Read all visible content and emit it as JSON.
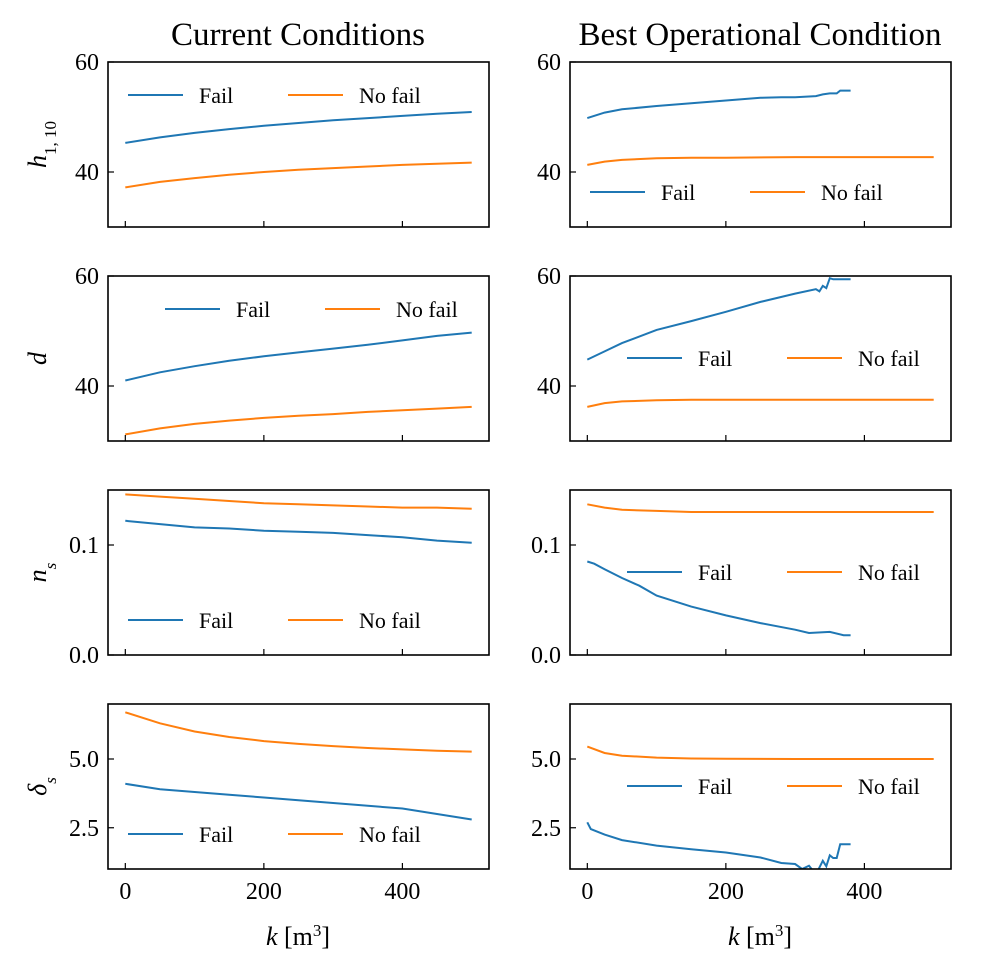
{
  "chart_data": {
    "type": "line",
    "column_titles": [
      "Current Conditions",
      "Best Operational Condition"
    ],
    "xlabel": {
      "var": "k",
      "unit": "[m",
      "sup": "3",
      "close": "]"
    },
    "xlim": [
      -25,
      525
    ],
    "xticks": [
      0,
      200,
      400
    ],
    "legend": {
      "fail": "Fail",
      "nofail": "No fail"
    },
    "colors": {
      "fail": "#1f77b4",
      "nofail": "#ff7f0e"
    },
    "rows": [
      {
        "ylabel": {
          "base": "h",
          "sub": "1, 10"
        },
        "ylim": [
          30,
          60
        ],
        "yticks": [
          40,
          60
        ],
        "ytick_labels": [
          "40",
          "60"
        ],
        "panels": [
          {
            "legend_position": "upper-left",
            "fail": {
              "x": [
                0,
                50,
                100,
                150,
                200,
                250,
                300,
                350,
                400,
                450,
                500
              ],
              "y": [
                45.3,
                46.3,
                47.1,
                47.8,
                48.4,
                48.9,
                49.4,
                49.8,
                50.2,
                50.6,
                50.9
              ]
            },
            "nofail": {
              "x": [
                0,
                50,
                100,
                150,
                200,
                250,
                300,
                350,
                400,
                450,
                500
              ],
              "y": [
                37.2,
                38.2,
                38.9,
                39.5,
                40.0,
                40.4,
                40.7,
                41.0,
                41.3,
                41.5,
                41.7
              ]
            }
          },
          {
            "legend_position": "lower-left",
            "fail": {
              "x": [
                0,
                25,
                50,
                100,
                150,
                200,
                250,
                280,
                300,
                330,
                340,
                350,
                360,
                365,
                380
              ],
              "y": [
                49.8,
                50.8,
                51.4,
                52.0,
                52.5,
                53.0,
                53.5,
                53.6,
                53.6,
                53.8,
                54.1,
                54.3,
                54.3,
                54.8,
                54.8
              ]
            },
            "nofail": {
              "x": [
                0,
                25,
                50,
                100,
                150,
                200,
                300,
                400,
                500
              ],
              "y": [
                41.3,
                41.9,
                42.2,
                42.5,
                42.6,
                42.6,
                42.7,
                42.7,
                42.7
              ]
            }
          }
        ]
      },
      {
        "ylabel": {
          "base": "d",
          "sub": ""
        },
        "ylim": [
          30,
          60
        ],
        "yticks": [
          40,
          60
        ],
        "ytick_labels": [
          "40",
          "60"
        ],
        "panels": [
          {
            "legend_position": "upper-right",
            "fail": {
              "x": [
                0,
                50,
                100,
                150,
                200,
                250,
                300,
                350,
                400,
                450,
                500
              ],
              "y": [
                41.0,
                42.5,
                43.6,
                44.6,
                45.4,
                46.1,
                46.8,
                47.5,
                48.3,
                49.1,
                49.7
              ]
            },
            "nofail": {
              "x": [
                0,
                50,
                100,
                150,
                200,
                250,
                300,
                350,
                400,
                450,
                500
              ],
              "y": [
                31.2,
                32.3,
                33.1,
                33.7,
                34.2,
                34.6,
                34.9,
                35.3,
                35.6,
                35.9,
                36.2
              ]
            }
          },
          {
            "legend_position": "center-right",
            "fail": {
              "x": [
                0,
                25,
                50,
                100,
                150,
                200,
                250,
                300,
                330,
                335,
                340,
                345,
                350,
                355,
                380
              ],
              "y": [
                44.8,
                46.3,
                47.8,
                50.2,
                51.8,
                53.5,
                55.3,
                56.8,
                57.6,
                57.2,
                58.2,
                57.8,
                59.6,
                59.4,
                59.4
              ]
            },
            "nofail": {
              "x": [
                0,
                25,
                50,
                100,
                150,
                200,
                300,
                400,
                500
              ],
              "y": [
                36.2,
                36.9,
                37.2,
                37.4,
                37.5,
                37.5,
                37.5,
                37.5,
                37.5
              ]
            }
          }
        ]
      },
      {
        "ylabel": {
          "base": "n",
          "sub": "s"
        },
        "ylim": [
          0.0,
          0.15
        ],
        "yticks": [
          0.0,
          0.1
        ],
        "ytick_labels": [
          "0.0",
          "0.1"
        ],
        "panels": [
          {
            "legend_position": "lower-left",
            "fail": {
              "x": [
                0,
                50,
                100,
                150,
                200,
                250,
                300,
                350,
                400,
                450,
                500
              ],
              "y": [
                0.122,
                0.119,
                0.116,
                0.115,
                0.113,
                0.112,
                0.111,
                0.109,
                0.107,
                0.104,
                0.102
              ]
            },
            "nofail": {
              "x": [
                0,
                50,
                100,
                150,
                200,
                250,
                300,
                350,
                400,
                450,
                500
              ],
              "y": [
                0.146,
                0.144,
                0.142,
                0.14,
                0.138,
                0.137,
                0.136,
                0.135,
                0.134,
                0.134,
                0.133
              ]
            }
          },
          {
            "legend_position": "center-right",
            "fail": {
              "x": [
                0,
                10,
                25,
                50,
                75,
                100,
                150,
                200,
                250,
                300,
                320,
                350,
                370,
                380
              ],
              "y": [
                0.085,
                0.083,
                0.078,
                0.07,
                0.063,
                0.054,
                0.044,
                0.036,
                0.029,
                0.023,
                0.02,
                0.021,
                0.018,
                0.018
              ]
            },
            "nofail": {
              "x": [
                0,
                25,
                50,
                100,
                150,
                200,
                300,
                400,
                500
              ],
              "y": [
                0.137,
                0.134,
                0.132,
                0.131,
                0.13,
                0.13,
                0.13,
                0.13,
                0.13
              ]
            }
          }
        ]
      },
      {
        "ylabel": {
          "base": "δ",
          "sub": "s"
        },
        "ylim": [
          1.0,
          7.0
        ],
        "yticks": [
          2.5,
          5.0
        ],
        "ytick_labels": [
          "2.5",
          "5.0"
        ],
        "panels": [
          {
            "legend_position": "lower-left",
            "fail": {
              "x": [
                0,
                50,
                100,
                150,
                200,
                250,
                300,
                350,
                400,
                450,
                500
              ],
              "y": [
                4.1,
                3.9,
                3.8,
                3.7,
                3.6,
                3.5,
                3.4,
                3.3,
                3.2,
                3.0,
                2.8
              ]
            },
            "nofail": {
              "x": [
                0,
                50,
                100,
                150,
                200,
                250,
                300,
                350,
                400,
                450,
                500
              ],
              "y": [
                6.7,
                6.3,
                6.0,
                5.8,
                5.65,
                5.55,
                5.47,
                5.4,
                5.35,
                5.3,
                5.27
              ]
            }
          },
          {
            "legend_position": "center-right",
            "fail": {
              "x": [
                0,
                5,
                25,
                50,
                100,
                150,
                200,
                250,
                280,
                300,
                310,
                320,
                330,
                340,
                345,
                350,
                355,
                360,
                365,
                380
              ],
              "y": [
                2.7,
                2.45,
                2.25,
                2.05,
                1.85,
                1.72,
                1.6,
                1.42,
                1.22,
                1.18,
                1.0,
                1.12,
                0.8,
                1.3,
                1.1,
                1.5,
                1.4,
                1.4,
                1.9,
                1.9
              ]
            },
            "nofail": {
              "x": [
                0,
                25,
                50,
                100,
                150,
                200,
                300,
                400,
                500
              ],
              "y": [
                5.45,
                5.22,
                5.12,
                5.05,
                5.02,
                5.01,
                5.0,
                5.0,
                5.0
              ]
            }
          }
        ]
      }
    ]
  }
}
